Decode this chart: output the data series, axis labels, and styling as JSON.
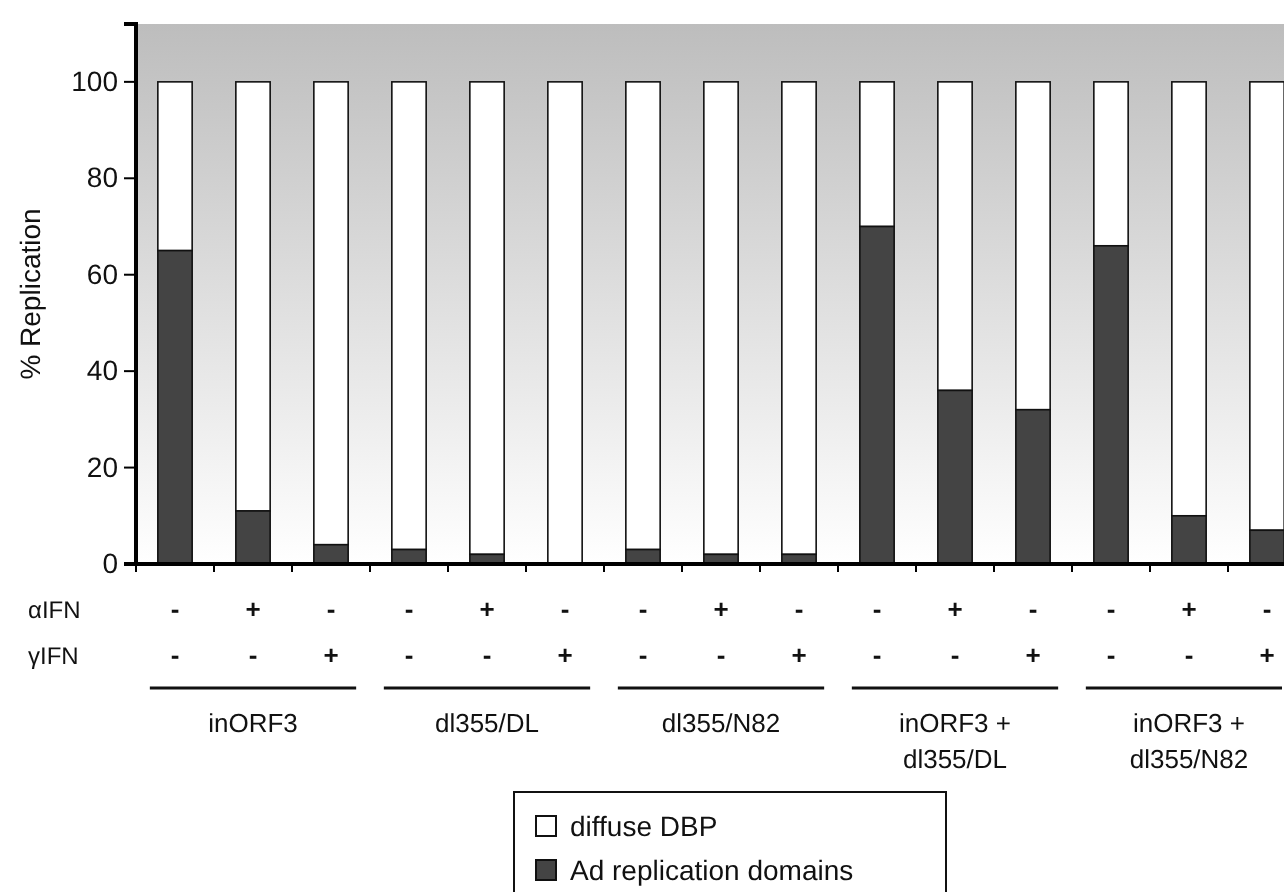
{
  "chart_data": {
    "type": "bar",
    "stacked": true,
    "ylabel": "% Replication",
    "categories": [
      null,
      null,
      null,
      null,
      null,
      null,
      null,
      null,
      null,
      null,
      null,
      null,
      null,
      null,
      null
    ],
    "series": [
      {
        "name": "Ad replication domains",
        "color": "#444444",
        "values": [
          65,
          11,
          4,
          3,
          2,
          0,
          3,
          2,
          2,
          70,
          36,
          32,
          66,
          10,
          7
        ]
      },
      {
        "name": "diffuse DBP",
        "color": "#ffffff",
        "values": [
          35,
          89,
          96,
          97,
          98,
          100,
          97,
          98,
          98,
          30,
          64,
          68,
          34,
          90,
          93
        ]
      }
    ],
    "ylim": [
      0,
      112
    ],
    "yticks": [
      0,
      20,
      40,
      60,
      80,
      100
    ],
    "grid": false,
    "legend": "bottom",
    "annotations": [
      "αIFN",
      "γIFN",
      "-",
      "+",
      "-",
      "-",
      "+",
      "-",
      "-",
      "+",
      "-",
      "-",
      "+",
      "-",
      "-",
      "+",
      "-",
      "-",
      "-",
      "+",
      "-",
      "-",
      "+",
      "-",
      "-",
      "+",
      "-",
      "-",
      "+",
      "-",
      "-",
      "+",
      "inORF3",
      "dl355/DL",
      "dl355/N82",
      "inORF3 +\ndl355/DL",
      "inORF3 +\ndl355/N82"
    ]
  }
}
